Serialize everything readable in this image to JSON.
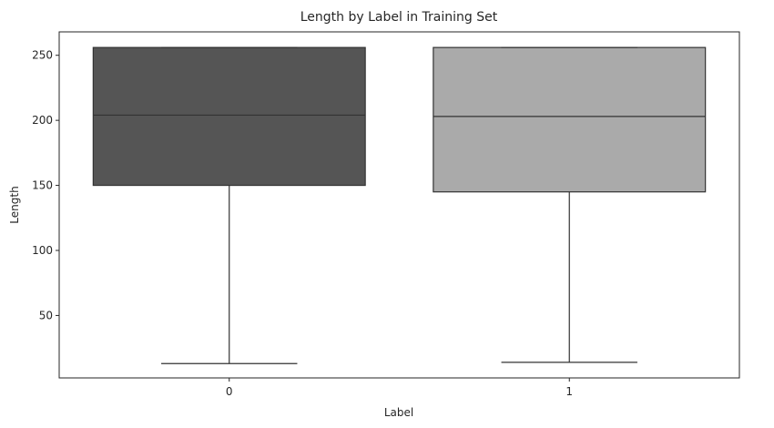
{
  "chart_data": {
    "type": "box",
    "title": "Length by Label in Training Set",
    "xlabel": "Label",
    "ylabel": "Length",
    "categories": [
      "0",
      "1"
    ],
    "boxes": [
      {
        "category": "0",
        "whisker_low": 13,
        "q1": 150,
        "median": 204,
        "q3": 256,
        "whisker_high": 256,
        "color": "#555555"
      },
      {
        "category": "1",
        "whisker_low": 14,
        "q1": 145,
        "median": 203,
        "q3": 256,
        "whisker_high": 256,
        "color": "#aaaaaa"
      }
    ],
    "ylim": [
      2,
      268
    ],
    "yticks": [
      50,
      100,
      150,
      200,
      250
    ],
    "grid": false,
    "line_color": "#333333"
  }
}
